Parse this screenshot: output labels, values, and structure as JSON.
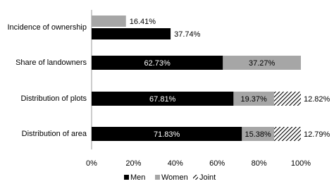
{
  "chart_data": {
    "type": "bar",
    "orientation": "horizontal",
    "categories": [
      "Incidence of ownership",
      "Share of landowners",
      "Distribution of plots",
      "Distribution of area"
    ],
    "stack": [
      false,
      true,
      true,
      true
    ],
    "series": [
      {
        "name": "Men",
        "color": "#000000",
        "values": [
          37.74,
          62.73,
          67.81,
          71.83
        ],
        "value_labels": [
          "37.74%",
          "62.73%",
          "67.81%",
          "71.83%"
        ]
      },
      {
        "name": "Women",
        "color": "#a6a6a6",
        "values": [
          16.41,
          37.27,
          19.37,
          15.38
        ],
        "value_labels": [
          "16.41%",
          "37.27%",
          "19.37%",
          "15.38%"
        ]
      },
      {
        "name": "Joint",
        "color": "#000000",
        "pattern": "hatch",
        "values": [
          null,
          null,
          12.82,
          12.79
        ],
        "value_labels": [
          null,
          null,
          "12.82%",
          "12.79%"
        ]
      }
    ],
    "xlim": [
      0,
      100
    ],
    "xticks": [
      {
        "value": 0,
        "label": "0%"
      },
      {
        "value": 20,
        "label": "20%"
      },
      {
        "value": 40,
        "label": "40%"
      },
      {
        "value": 60,
        "label": "60%"
      },
      {
        "value": 80,
        "label": "80%"
      },
      {
        "value": 100,
        "label": "100%"
      }
    ],
    "grid": false,
    "legend": "bottom"
  }
}
